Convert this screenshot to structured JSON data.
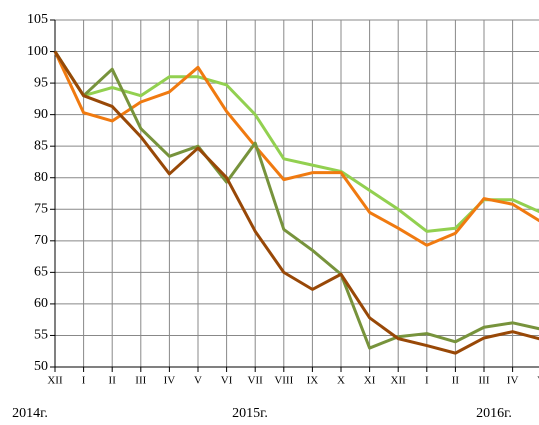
{
  "chart_data": {
    "type": "line",
    "categories": [
      "XII",
      "I",
      "II",
      "III",
      "IV",
      "V",
      "VI",
      "VII",
      "VIII",
      "IX",
      "X",
      "XI",
      "XII",
      "I",
      "II",
      "III",
      "IV",
      "V"
    ],
    "series": [
      {
        "name": "light-green",
        "color": "#92d050",
        "values": [
          100,
          93,
          94.3,
          93,
          96,
          96,
          94.7,
          90,
          83,
          82,
          81,
          78,
          75,
          71.5,
          72,
          76.5,
          76.5,
          74.5
        ]
      },
      {
        "name": "orange",
        "color": "#f07a10",
        "values": [
          100,
          90.3,
          89,
          92,
          93.6,
          97.5,
          90.5,
          85,
          79.7,
          80.8,
          80.8,
          74.5,
          72,
          69.3,
          71.2,
          76.7,
          75.8,
          73
        ]
      },
      {
        "name": "olive",
        "color": "#77933c",
        "values": [
          100,
          93,
          97.2,
          87.8,
          83.4,
          85,
          79.3,
          85.5,
          71.8,
          68.5,
          64.7,
          53,
          54.8,
          55.3,
          54,
          56.3,
          57,
          56
        ]
      },
      {
        "name": "brown",
        "color": "#984807",
        "values": [
          100,
          93,
          91.3,
          86.5,
          80.6,
          84.7,
          80,
          71.5,
          65,
          62.3,
          64.7,
          57.8,
          54.5,
          53.4,
          52.2,
          54.6,
          55.6,
          54.4
        ]
      }
    ],
    "ylim": [
      50,
      105
    ],
    "yticks": [
      50,
      55,
      60,
      65,
      70,
      75,
      80,
      85,
      90,
      95,
      100,
      105
    ],
    "grid": true,
    "year_labels": [
      "2014г.",
      "2015г.",
      "2016г."
    ]
  }
}
